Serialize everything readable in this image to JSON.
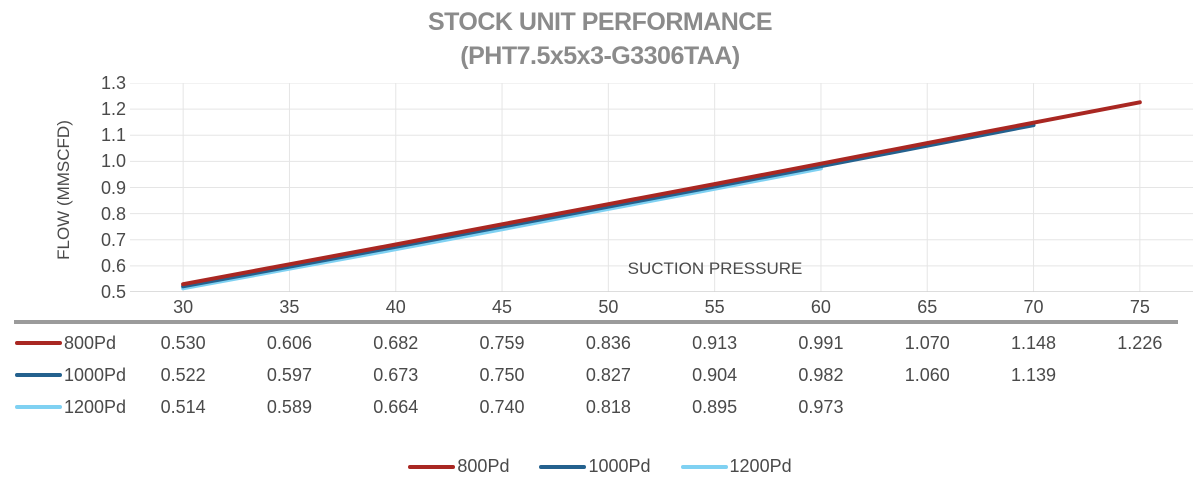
{
  "header": {
    "title_line1": "STOCK UNIT PERFORMANCE",
    "title_line2": "(PHT7.5x5x3-G3306TAA)"
  },
  "chart_data": {
    "type": "line",
    "title": "STOCK UNIT PERFORMANCE (PHT7.5x5x3-G3306TAA)",
    "xlabel": "SUCTION PRESSURE",
    "ylabel": "FLOW (MMSCFD)",
    "x": [
      30,
      35,
      40,
      45,
      50,
      55,
      60,
      65,
      70,
      75
    ],
    "yticks": [
      0.5,
      0.6,
      0.7,
      0.8,
      0.9,
      1.0,
      1.1,
      1.2,
      1.3
    ],
    "ylim": [
      0.5,
      1.3
    ],
    "grid": true,
    "legend_position": "bottom",
    "series": [
      {
        "name": "800Pd",
        "color": "#a92722",
        "values": [
          0.53,
          0.606,
          0.682,
          0.759,
          0.836,
          0.913,
          0.991,
          1.07,
          1.148,
          1.226
        ]
      },
      {
        "name": "1000Pd",
        "color": "#24618e",
        "values": [
          0.522,
          0.597,
          0.673,
          0.75,
          0.827,
          0.904,
          0.982,
          1.06,
          1.139
        ]
      },
      {
        "name": "1200Pd",
        "color": "#7fd1f2",
        "values": [
          0.514,
          0.589,
          0.664,
          0.74,
          0.818,
          0.895,
          0.973
        ]
      }
    ]
  },
  "style": {
    "gridline_color": "#e5e5e5",
    "axis_line_color": "#d2d2d2",
    "divider_color": "#9b9b9b"
  }
}
